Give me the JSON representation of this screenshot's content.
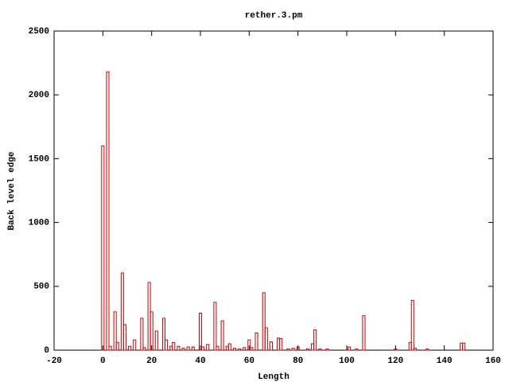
{
  "chart_data": {
    "type": "bar",
    "title": "rether.3.pm",
    "x_label": "Length",
    "y_label": "Back level edge",
    "x": [
      0,
      2,
      3,
      5,
      6,
      8,
      9,
      11,
      13,
      16,
      17,
      19,
      20,
      22,
      25,
      26,
      28,
      29,
      31,
      33,
      35,
      37,
      40,
      41,
      43,
      46,
      47,
      49,
      51,
      52,
      54,
      56,
      58,
      60,
      61,
      63,
      66,
      67,
      69,
      72,
      73,
      76,
      78,
      80,
      84,
      86,
      87,
      89,
      92,
      101,
      104,
      107,
      120,
      126,
      127,
      128,
      133,
      147,
      148
    ],
    "values": [
      1600,
      2180,
      30,
      300,
      60,
      605,
      200,
      30,
      80,
      250,
      20,
      530,
      300,
      150,
      250,
      80,
      30,
      60,
      30,
      15,
      25,
      25,
      290,
      25,
      45,
      375,
      30,
      230,
      30,
      50,
      15,
      10,
      20,
      80,
      20,
      135,
      450,
      175,
      65,
      95,
      90,
      10,
      15,
      25,
      10,
      50,
      160,
      10,
      10,
      25,
      10,
      270,
      10,
      60,
      390,
      15,
      10,
      55,
      55
    ],
    "color": "#cc0000",
    "xlim": [
      -20,
      160
    ],
    "xticks": [
      -20,
      0,
      20,
      40,
      60,
      80,
      100,
      120,
      140,
      160
    ],
    "ylim": [
      0,
      2500
    ],
    "yticks": [
      0,
      500,
      1000,
      1500,
      2000,
      2500
    ]
  }
}
